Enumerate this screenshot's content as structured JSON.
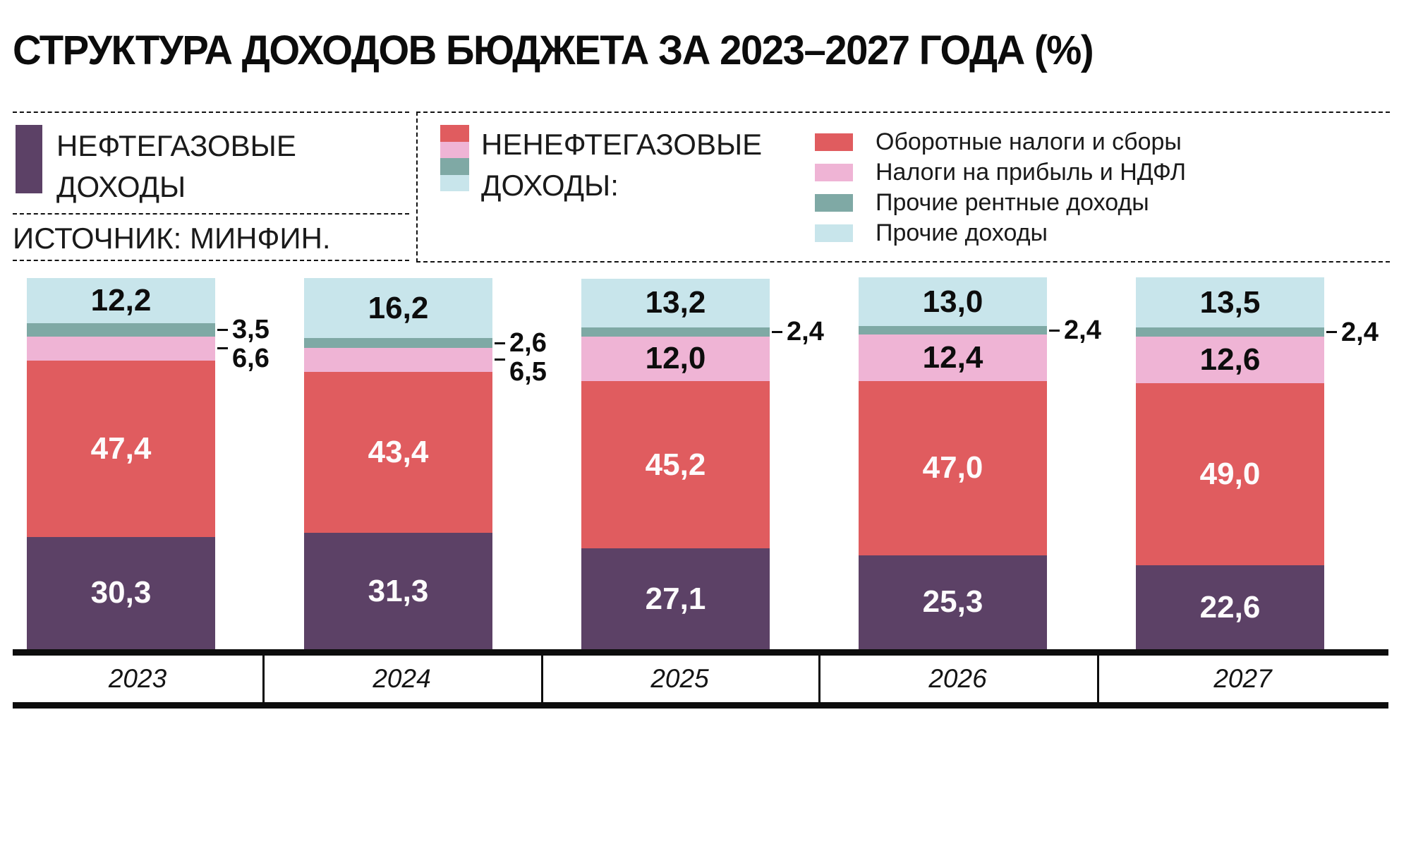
{
  "title": "СТРУКТУРА ДОХОДОВ БЮДЖЕТА ЗА 2023–2027 ГОДА (%)",
  "source": "ИСТОЧНИК: МИНФИН.",
  "legend": {
    "oil_label": "НЕФТЕГАЗОВЫЕ ДОХОДЫ",
    "nonoil_label": "НЕНЕФТЕГАЗОВЫЕ ДОХОДЫ:",
    "items": [
      {
        "label": "Оборотные налоги и сборы",
        "color_key": "turnover"
      },
      {
        "label": "Налоги на прибыль и НДФЛ",
        "color_key": "profit"
      },
      {
        "label": "Прочие рентные доходы",
        "color_key": "rent"
      },
      {
        "label": "Прочие доходы",
        "color_key": "other"
      }
    ]
  },
  "colors": {
    "oil": "#5c4166",
    "turnover": "#e05c5f",
    "profit": "#efb4d5",
    "rent": "#7fa9a5",
    "other": "#c8e5eb",
    "axis": "#0d0d0d"
  },
  "chart_data": {
    "type": "bar",
    "stacked": true,
    "unit": "%",
    "title": "Структура доходов бюджета за 2023–2027 года (%)",
    "categories": [
      "2023",
      "2024",
      "2025",
      "2026",
      "2027"
    ],
    "series": [
      {
        "name": "Нефтегазовые доходы",
        "color_key": "oil",
        "values": [
          30.3,
          31.3,
          27.1,
          25.3,
          22.6
        ]
      },
      {
        "name": "Оборотные налоги и сборы",
        "color_key": "turnover",
        "values": [
          47.4,
          43.4,
          45.2,
          47.0,
          49.0
        ]
      },
      {
        "name": "Налоги на прибыль и НДФЛ",
        "color_key": "profit",
        "values": [
          6.6,
          6.5,
          12.0,
          12.4,
          12.6
        ]
      },
      {
        "name": "Прочие рентные доходы",
        "color_key": "rent",
        "values": [
          3.5,
          2.6,
          2.4,
          2.4,
          2.4
        ]
      },
      {
        "name": "Прочие доходы",
        "color_key": "other",
        "values": [
          12.2,
          16.2,
          13.2,
          13.0,
          13.5
        ]
      }
    ],
    "ylim": [
      0,
      100
    ],
    "grid": false,
    "legend_position": "top",
    "decimal_separator": ","
  }
}
